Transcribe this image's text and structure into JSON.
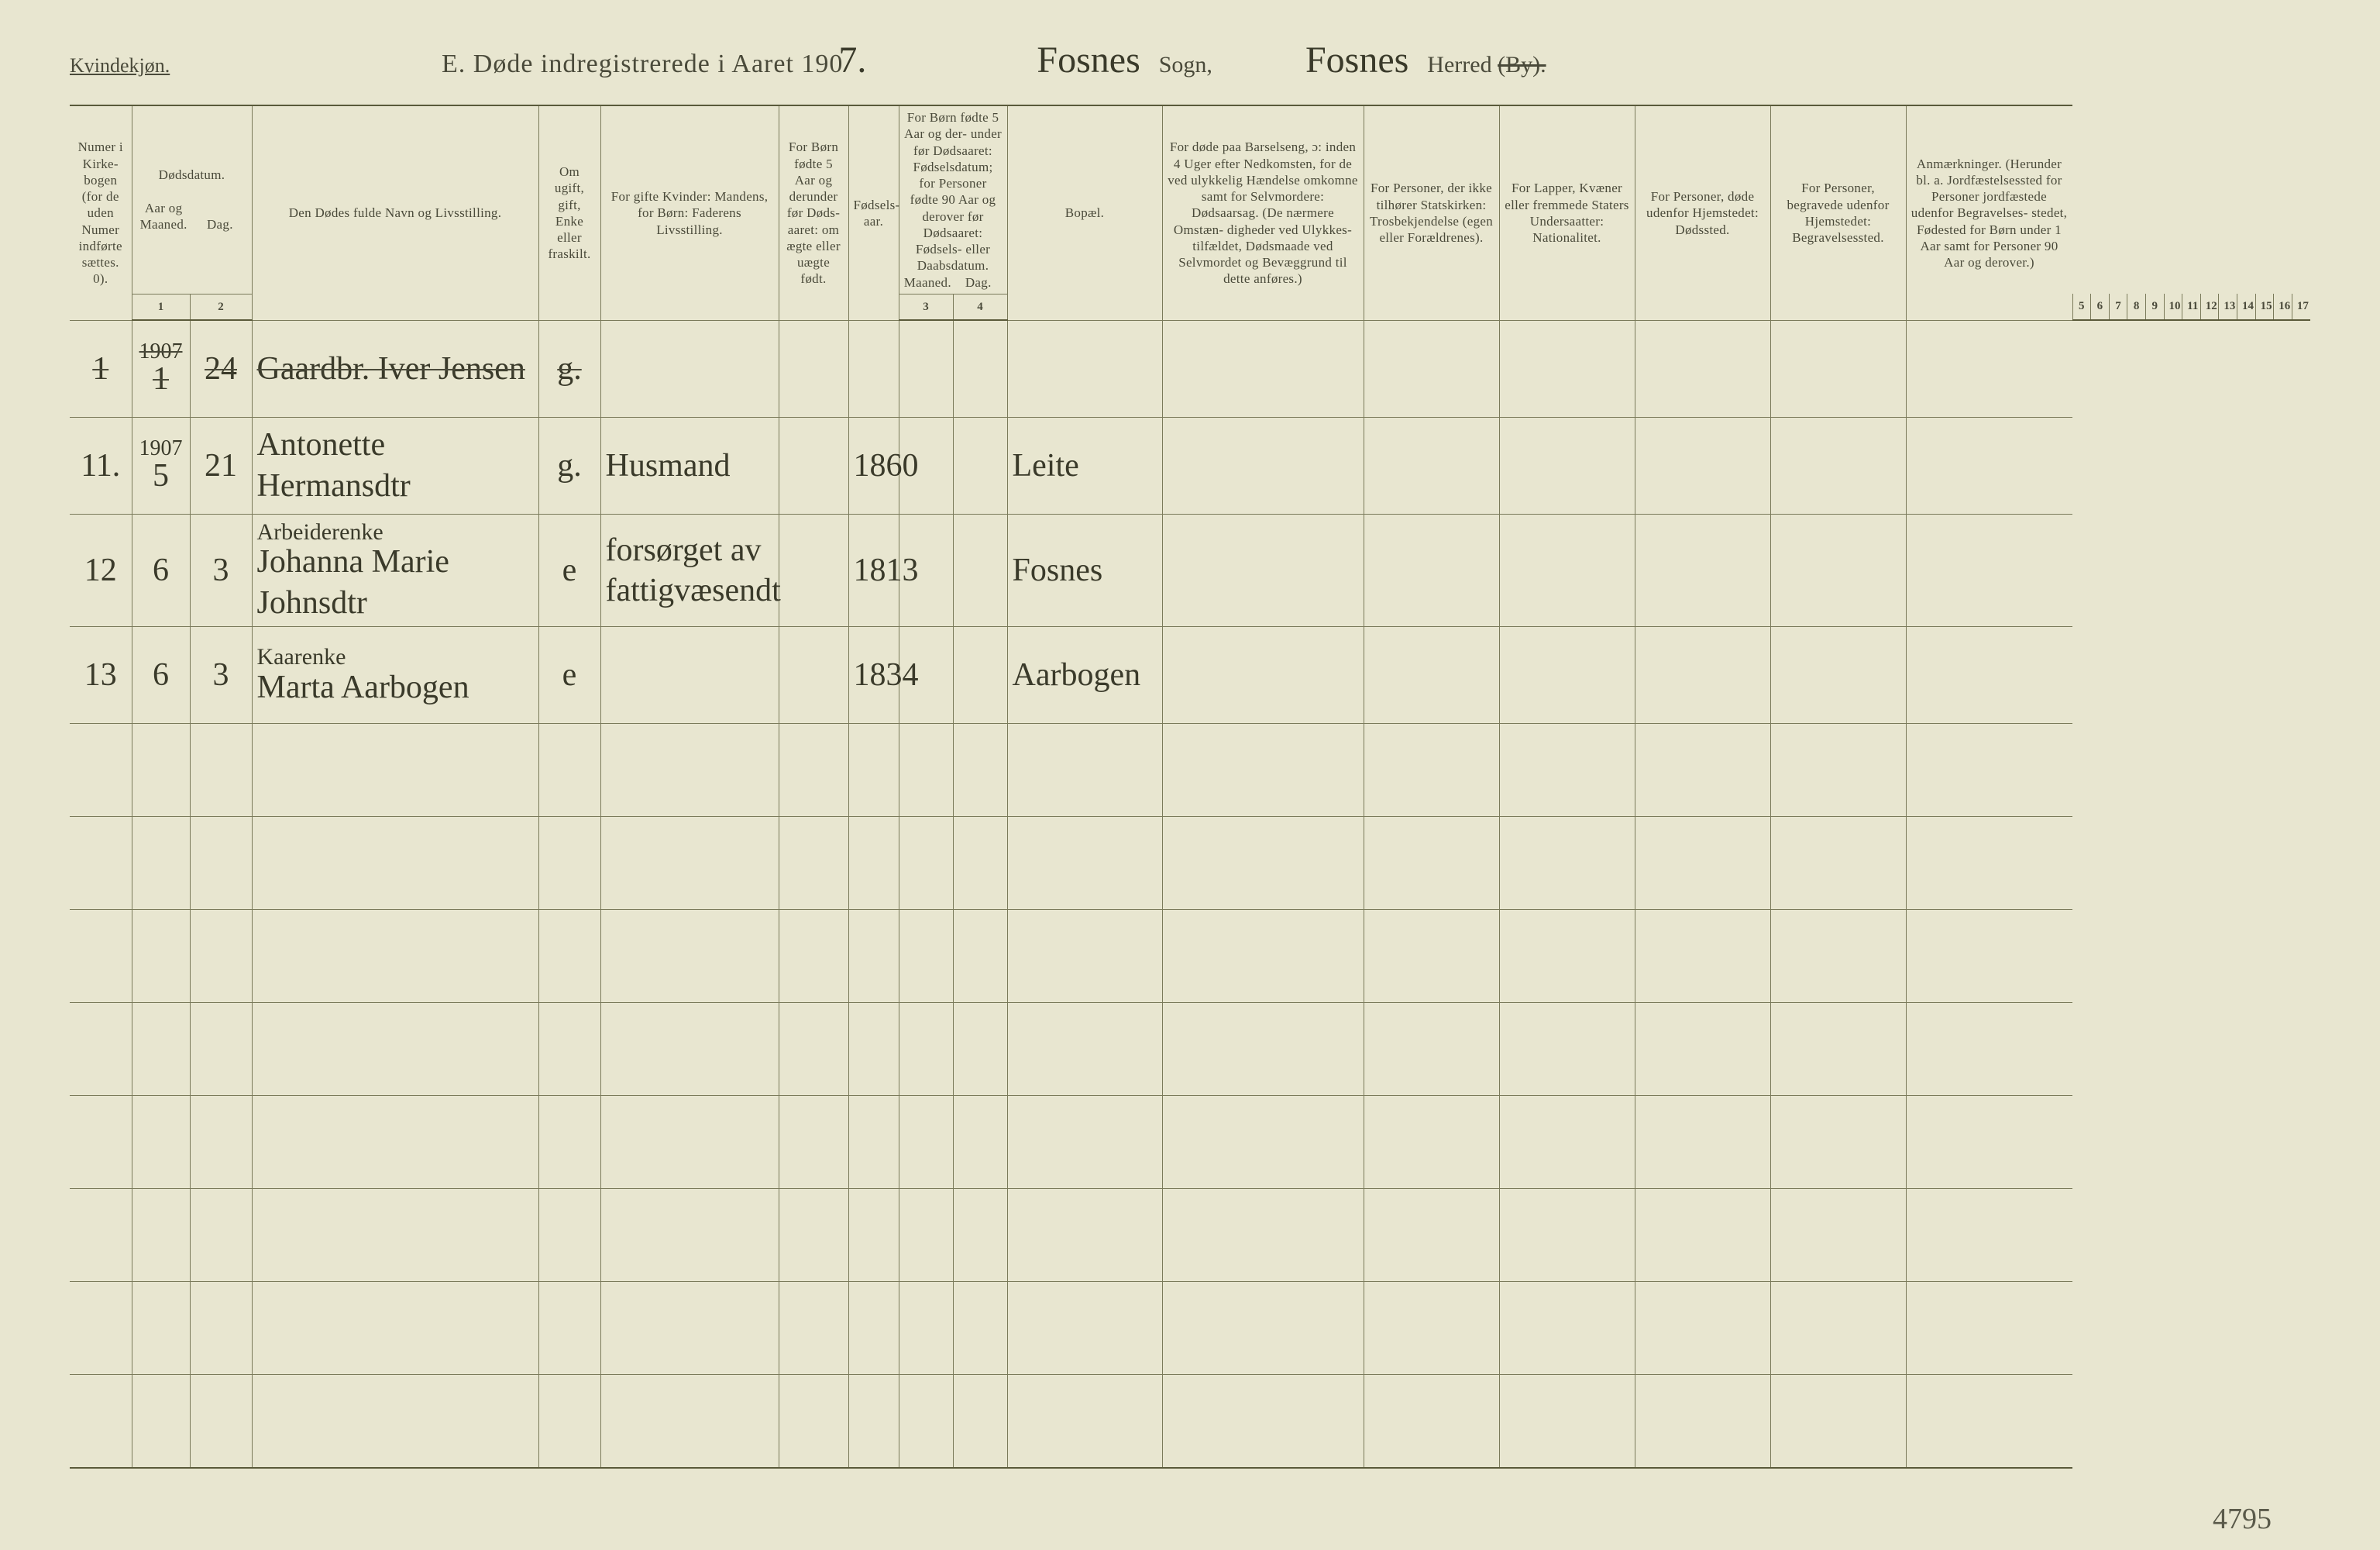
{
  "colors": {
    "paper": "#e8e6d0",
    "ink_printed": "#4a4a3a",
    "ink_handwritten": "#3a3a2a",
    "rule_line": "#7a7a5a",
    "rule_heavy": "#5a5a3a"
  },
  "typography": {
    "printed_family": "Times New Roman",
    "handwritten_family": "Brush Script MT",
    "title_fontsize_pt": 26,
    "header_fontsize_pt": 13,
    "handwriting_fontsize_pt": 32
  },
  "header": {
    "kvindekjon": "Kvindekjøn.",
    "title_prefix": "E.  Døde indregistrerede i Aaret 190",
    "title_year_suffix": "7.",
    "sogn_value": "Fosnes",
    "sogn_label": "Sogn,",
    "herred_value": "Fosnes",
    "herred_label": "Herred",
    "by_label": "(By)."
  },
  "columns": {
    "c1": "Numer i Kirke- bogen (for de uden Numer indførte sættes. 0).",
    "c2": "Dødsdatum.",
    "c2a": "Aar og Maaned.",
    "c2b": "Dag.",
    "c4": "Den Dødes fulde Navn og Livsstilling.",
    "c5": "Om ugift, gift, Enke eller fraskilt.",
    "c6": "For gifte Kvinder: Mandens, for Børn: Faderens Livsstilling.",
    "c7": "For Børn fødte 5 Aar og derunder før Døds- aaret: om ægte eller uægte født.",
    "c8": "Fødsels- aar.",
    "c9": "For Børn fødte 5 Aar og der- under før Dødsaaret: Fødselsdatum; for Personer fødte 90 Aar og derover før Dødsaaret: Fødsels- eller Daabsdatum.",
    "c9a": "Maaned.",
    "c9b": "Dag.",
    "c11": "Bopæl.",
    "c12": "For døde paa Barselseng, ɔ: inden 4 Uger efter Nedkomsten, for de ved ulykkelig Hændelse omkomne samt for Selvmordere: Dødsaarsag. (De nærmere Omstæn- digheder ved Ulykkes- tilfældet, Dødsmaade ved Selvmordet og Bevæggrund til dette anføres.)",
    "c13": "For Personer, der ikke tilhører Statskirken: Trosbekjendelse (egen eller Forældrenes).",
    "c14": "For Lapper, Kvæner eller fremmede Staters Undersaatter: Nationalitet.",
    "c15": "For Personer, døde udenfor Hjemstedet: Dødssted.",
    "c16": "For Personer, begravede udenfor Hjemstedet: Begravelsessted.",
    "c17": "Anmærkninger. (Herunder bl. a. Jordfæstelsessted for Personer jordfæstede udenfor Begravelses- stedet, Fødested for Børn under 1 Aar samt for Personer 90 Aar og derover.)"
  },
  "colnums": {
    "n1": "1",
    "n2": "2",
    "n3": "3",
    "n4": "4",
    "n5": "5",
    "n6": "6",
    "n7": "7",
    "n8": "8",
    "n9": "9",
    "n10": "10",
    "n11": "11",
    "n12": "12",
    "n13": "13",
    "n14": "14",
    "n15": "15",
    "n16": "16",
    "n17": "17"
  },
  "rows": [
    {
      "struck": true,
      "num": "1",
      "year": "1907",
      "month": "1",
      "day": "24",
      "name_sup": "",
      "name": "Gaardbr. Iver Jensen",
      "civil": "g.",
      "c6": "",
      "c7": "",
      "birth_year": "",
      "c9": "",
      "c10": "",
      "residence": "",
      "c12": "",
      "c13": "",
      "c14": "",
      "c15": "",
      "c16": "",
      "c17": ""
    },
    {
      "struck": false,
      "num": "11.",
      "year": "1907",
      "month": "5",
      "day": "21",
      "name_sup": "",
      "name": "Antonette Hermansdtr",
      "civil": "g.",
      "c6": "Husmand",
      "c7": "",
      "birth_year": "1860",
      "c9": "",
      "c10": "",
      "residence": "Leite",
      "c12": "",
      "c13": "",
      "c14": "",
      "c15": "",
      "c16": "",
      "c17": ""
    },
    {
      "struck": false,
      "num": "12",
      "year": "",
      "month": "6",
      "day": "3",
      "name_sup": "Arbeiderenke",
      "name": "Johanna Marie Johnsdtr",
      "civil": "e",
      "c6": "forsørget av fattigvæsendt",
      "c7": "",
      "birth_year": "1813",
      "c9": "",
      "c10": "",
      "residence": "Fosnes",
      "c12": "",
      "c13": "",
      "c14": "",
      "c15": "",
      "c16": "",
      "c17": ""
    },
    {
      "struck": false,
      "num": "13",
      "year": "",
      "month": "6",
      "day": "3",
      "name_sup": "Kaarenke",
      "name": "Marta Aarbogen",
      "civil": "e",
      "c6": "",
      "c7": "",
      "birth_year": "1834",
      "c9": "",
      "c10": "",
      "residence": "Aarbogen",
      "c12": "",
      "c13": "",
      "c14": "",
      "c15": "",
      "c16": "",
      "c17": ""
    }
  ],
  "blank_row_count": 8,
  "corner_note": "4795"
}
